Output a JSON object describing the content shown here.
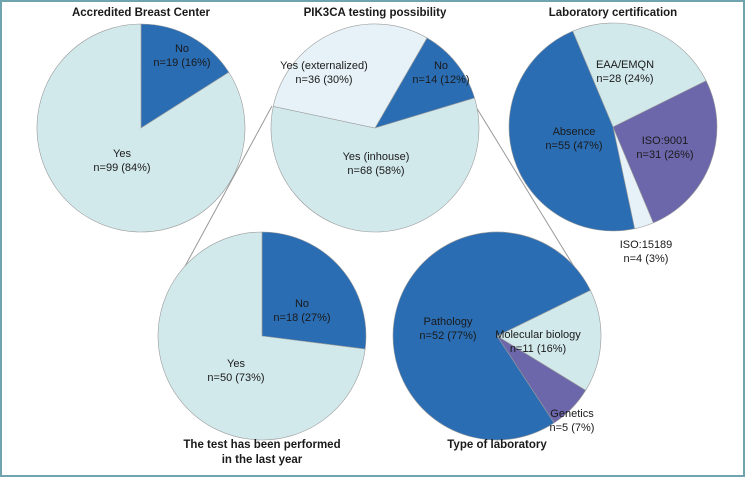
{
  "colors": {
    "dark_blue": "#2a6db3",
    "light_cyan": "#d2e9ec",
    "pale_blue": "#e6f2f7",
    "purple": "#6c67ab",
    "connector": "#999999",
    "frame": "#6fa3ad"
  },
  "chart_data": [
    {
      "type": "pie",
      "id": "accredited",
      "title": [
        "Accredited Breast Center"
      ],
      "title_position": "top",
      "start_angle_deg": 0,
      "slices": [
        {
          "label": "No",
          "n": 19,
          "pct": 16,
          "text": "n=19 (16%)",
          "color": "dark_blue"
        },
        {
          "label": "Yes",
          "n": 99,
          "pct": 84,
          "text": "n=99 (84%)",
          "color": "light_cyan"
        }
      ]
    },
    {
      "type": "pie",
      "id": "pik3ca",
      "title": [
        "PIK3CA testing possibility"
      ],
      "title_position": "top",
      "start_angle_deg": 30,
      "slices": [
        {
          "label": "No",
          "n": 14,
          "pct": 12,
          "text": "n=14 (12%)",
          "color": "dark_blue"
        },
        {
          "label": "Yes (inhouse)",
          "n": 68,
          "pct": 58,
          "text": "n=68 (58%)",
          "color": "light_cyan"
        },
        {
          "label": "Yes (externalized)",
          "n": 36,
          "pct": 30,
          "text": "n=36 (30%)",
          "color": "pale_blue"
        }
      ]
    },
    {
      "type": "pie",
      "id": "certification",
      "title": [
        "Laboratory certification"
      ],
      "title_position": "top",
      "start_angle_deg": -22.8,
      "slices": [
        {
          "label": "EAA/EMQN",
          "n": 28,
          "pct": 24,
          "text": "n=28 (24%)",
          "color": "light_cyan"
        },
        {
          "label": "ISO:9001",
          "n": 31,
          "pct": 26,
          "text": "n=31 (26%)",
          "color": "purple"
        },
        {
          "label": "ISO:15189",
          "n": 4,
          "pct": 3,
          "text": "n=4 (3%)",
          "color": "pale_blue"
        },
        {
          "label": "Absence",
          "n": 55,
          "pct": 47,
          "text": "n=55 (47%)",
          "color": "dark_blue"
        }
      ]
    },
    {
      "type": "pie",
      "id": "performed",
      "title": [
        "The test has been performed",
        "in the last year"
      ],
      "title_position": "bottom",
      "start_angle_deg": 0,
      "slices": [
        {
          "label": "No",
          "n": 18,
          "pct": 27,
          "text": "n=18 (27%)",
          "color": "dark_blue"
        },
        {
          "label": "Yes",
          "n": 50,
          "pct": 73,
          "text": "n=50 (73%)",
          "color": "light_cyan"
        }
      ]
    },
    {
      "type": "pie",
      "id": "labtype",
      "title": [
        "Type of laboratory"
      ],
      "title_position": "bottom",
      "start_angle_deg": 63.9,
      "slices": [
        {
          "label": "Molecular biology",
          "n": 11,
          "pct": 16,
          "text": "n=11 (16%)",
          "color": "light_cyan"
        },
        {
          "label": "Genetics",
          "n": 5,
          "pct": 7,
          "text": "n=5 (7%)",
          "color": "purple"
        },
        {
          "label": "Pathology",
          "n": 52,
          "pct": 77,
          "text": "n=52 (77%)",
          "color": "dark_blue"
        }
      ]
    }
  ]
}
